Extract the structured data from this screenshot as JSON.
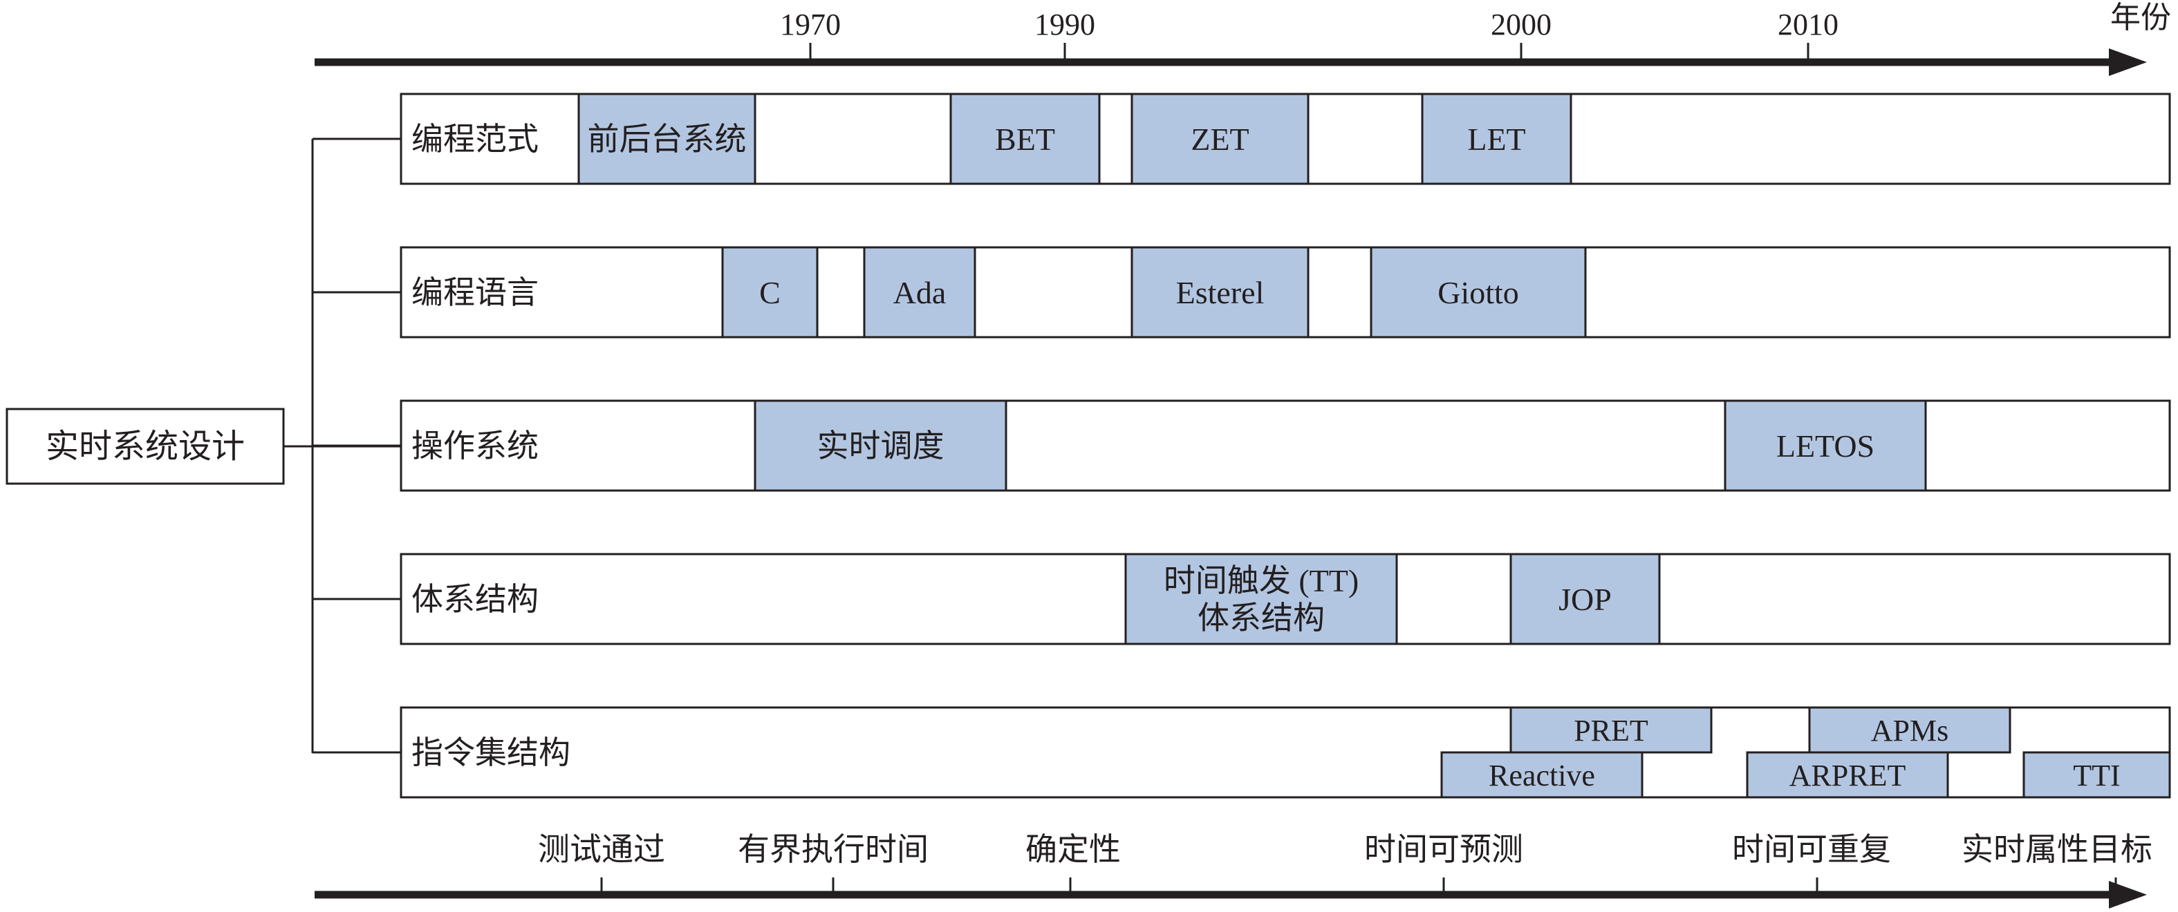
{
  "colors": {
    "ink": "#231f20",
    "block_fill": "#b3c6e1",
    "row_fill": "#ffffff"
  },
  "root": {
    "label": "实时系统设计"
  },
  "top_axis": {
    "unit_label": "年份",
    "ticks": [
      "1970",
      "1990",
      "2000",
      "2010"
    ]
  },
  "bottom_axis": {
    "milestones": [
      "测试通过",
      "有界执行时间",
      "确定性",
      "时间可预测",
      "时间可重复",
      "实时属性目标"
    ]
  },
  "rows": [
    {
      "label": "编程范式",
      "blocks": [
        {
          "lines": [
            "前后台系统"
          ]
        },
        {
          "lines": [
            "BET"
          ]
        },
        {
          "lines": [
            "ZET"
          ]
        },
        {
          "lines": [
            "LET"
          ]
        }
      ]
    },
    {
      "label": "编程语言",
      "blocks": [
        {
          "lines": [
            "C"
          ]
        },
        {
          "lines": [
            "Ada"
          ]
        },
        {
          "lines": [
            "Esterel"
          ]
        },
        {
          "lines": [
            "Giotto"
          ]
        }
      ]
    },
    {
      "label": "操作系统",
      "blocks": [
        {
          "lines": [
            "实时调度"
          ]
        },
        {
          "lines": [
            "LETOS"
          ]
        }
      ]
    },
    {
      "label": "体系结构",
      "blocks": [
        {
          "lines": [
            "时间触发 (TT)",
            "体系结构"
          ]
        },
        {
          "lines": [
            "JOP"
          ]
        }
      ]
    },
    {
      "label": "指令集结构",
      "blocks": [
        {
          "lines": [
            "PRET"
          ]
        },
        {
          "lines": [
            "Reactive"
          ]
        },
        {
          "lines": [
            "APMs"
          ]
        },
        {
          "lines": [
            "ARPRET"
          ]
        },
        {
          "lines": [
            "TTI"
          ]
        }
      ]
    }
  ]
}
